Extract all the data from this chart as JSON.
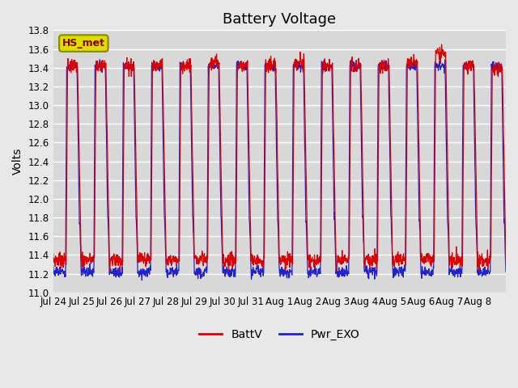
{
  "title": "Battery Voltage",
  "ylabel": "Volts",
  "ylim": [
    11.0,
    13.8
  ],
  "yticks": [
    11.0,
    11.2,
    11.4,
    11.6,
    11.8,
    12.0,
    12.2,
    12.4,
    12.6,
    12.8,
    13.0,
    13.2,
    13.4,
    13.6,
    13.8
  ],
  "xtick_labels": [
    "Jul 24",
    "Jul 25",
    "Jul 26",
    "Jul 27",
    "Jul 28",
    "Jul 29",
    "Jul 30",
    "Jul 31",
    "Aug 1",
    "Aug 2",
    "Aug 3",
    "Aug 4",
    "Aug 5",
    "Aug 6",
    "Aug 7",
    "Aug 8"
  ],
  "batt_color": "#dd0000",
  "exo_color": "#2222cc",
  "legend_labels": [
    "BattV",
    "Pwr_EXO"
  ],
  "station_label": "HS_met",
  "station_box_color": "#dddd00",
  "station_box_edge": "#888800",
  "background_color": "#e8e8e8",
  "plot_bg_color": "#d8d8d8",
  "grid_color": "#ffffff",
  "title_fontsize": 13,
  "label_fontsize": 10,
  "tick_fontsize": 8.5,
  "num_days": 16,
  "samples_per_day": 96
}
